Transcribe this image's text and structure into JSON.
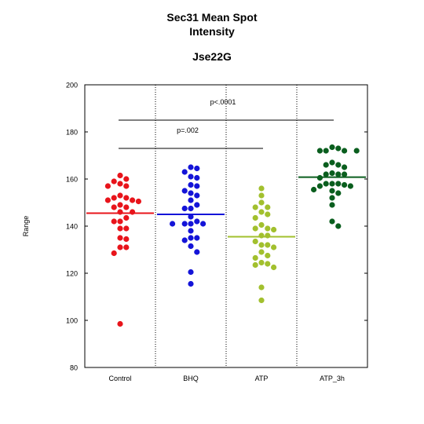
{
  "chart_data": {
    "type": "scatter",
    "title_line1": "Sec31 Mean Spot",
    "title_line2": "Intensity",
    "subtitle": "Jse22G",
    "xlabel": "",
    "ylabel": "Range",
    "ylim": [
      80,
      200
    ],
    "yticks": [
      80,
      100,
      120,
      140,
      160,
      180,
      200
    ],
    "grid": false,
    "categories": [
      "Control",
      "BHQ",
      "ATP",
      "ATP_3h"
    ],
    "colors": [
      "#e8141b",
      "#1414d8",
      "#a2c02e",
      "#0a5e1e"
    ],
    "series": [
      {
        "name": "Control",
        "mean": 145.5,
        "values": [
          161.5,
          160,
          159,
          158,
          157,
          157,
          153,
          152,
          152,
          151,
          151,
          150.5,
          149,
          148,
          148,
          146,
          146,
          143.5,
          142,
          142,
          139,
          139,
          135,
          134.5,
          131,
          131,
          128.5,
          98.5
        ]
      },
      {
        "name": "BHQ",
        "mean": 145,
        "values": [
          165,
          164.5,
          163,
          161,
          160.5,
          157.5,
          157,
          155,
          154,
          153,
          151,
          149,
          147.5,
          147.5,
          144,
          142,
          141,
          141,
          141,
          141,
          138,
          135,
          135,
          134,
          131.5,
          129,
          120.5,
          115.5
        ]
      },
      {
        "name": "ATP",
        "mean": 135.5,
        "values": [
          156,
          153,
          150,
          148,
          148,
          146,
          145,
          143.5,
          140.5,
          139,
          139,
          138.5,
          136,
          136,
          133.5,
          132,
          132,
          131,
          129,
          127.5,
          126.5,
          124.5,
          124,
          123.5,
          122.5,
          114,
          108.5
        ]
      },
      {
        "name": "ATP_3h",
        "mean": 160.8,
        "values": [
          173.5,
          173,
          172,
          172,
          172,
          172,
          167,
          166,
          166,
          165,
          162.5,
          162,
          162,
          162,
          160.5,
          158,
          158,
          158,
          157.5,
          157,
          157,
          155.5,
          155,
          154,
          152,
          149,
          142,
          140
        ]
      }
    ],
    "annotations": [
      {
        "text": "p<.0001",
        "from": "Control",
        "to": "ATP_3h",
        "y": 185
      },
      {
        "text": "p=.002",
        "from": "Control",
        "to": "ATP",
        "y": 173
      }
    ]
  }
}
